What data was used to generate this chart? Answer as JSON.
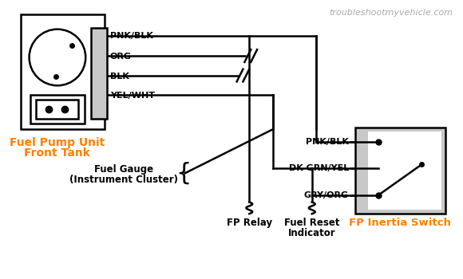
{
  "bg_color": "#ffffff",
  "line_color": "#000000",
  "orange_color": "#FF8000",
  "gray_color": "#C8C8C8",
  "watermark_color": "#AAAAAA",
  "title_text": "troubleshootmyvehicle.com",
  "wire_labels_left": [
    "PNK/BLK",
    "ORG",
    "BLK",
    "YEL/WHT"
  ],
  "wire_labels_right": [
    "PNK/BLK",
    "DK GRN/YEL",
    "GRY/ORG"
  ],
  "label_fuel_pump_line1": "Fuel Pump Unit",
  "label_fuel_pump_line2": "Front Tank",
  "label_fuel_gauge_line1": "Fuel Gauge",
  "label_fuel_gauge_line2": "(Instrument Cluster)",
  "label_fp_relay": "FP Relay",
  "label_fuel_reset_line1": "Fuel Reset",
  "label_fuel_reset_line2": "Indicator",
  "label_inertia": "FP Inertia Switch"
}
